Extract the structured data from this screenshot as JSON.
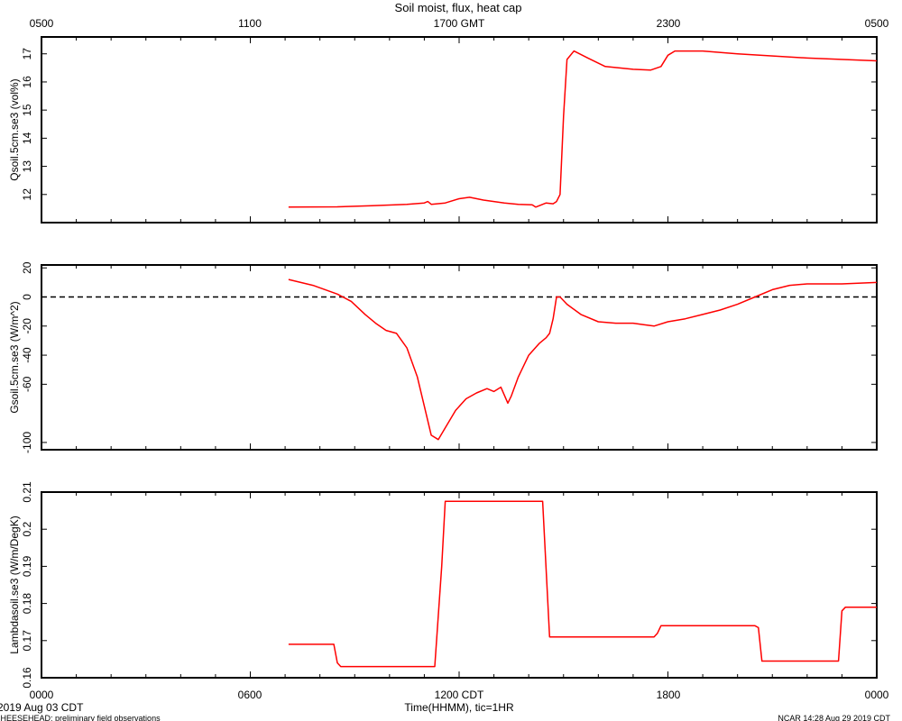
{
  "title": "Soil moist, flux, heat cap",
  "top_axis": {
    "ticks": [
      "0500",
      "1100",
      "1700 GMT",
      "2300",
      "0500"
    ]
  },
  "bottom_axis": {
    "ticks": [
      "0000",
      "0600",
      "1200 CDT",
      "1800",
      "0000"
    ],
    "label": "Time(HHMM), tic=1HR",
    "date": "2019 Aug 03 CDT"
  },
  "footer": {
    "left": "CHEESEHEAD: preliminary field observations",
    "right": "NCAR 14:28 Aug 29 2019 CDT"
  },
  "colors": {
    "series": "#ff0000",
    "axes": "#000000",
    "zero_line": "#000000"
  },
  "chart_data": [
    {
      "type": "line",
      "ylabel": "Qsoil.5cm.se3 (vol%)",
      "xlim": [
        0,
        24
      ],
      "ylim": [
        11,
        17.6
      ],
      "yticks": [
        12,
        13,
        14,
        15,
        16,
        17
      ],
      "series": [
        {
          "x": [
            7.1,
            8.5,
            9.5,
            10.5,
            11.0,
            11.1,
            11.2,
            11.6,
            12.0,
            12.3,
            12.7,
            13.3,
            13.7,
            14.1,
            14.2,
            14.5,
            14.7,
            14.8,
            14.9,
            15.0,
            15.1,
            15.3,
            15.7,
            16.2,
            17.0,
            17.5,
            17.8,
            18.0,
            18.2,
            19.0,
            20.0,
            22.0,
            24.0
          ],
          "y": [
            11.55,
            11.56,
            11.6,
            11.65,
            11.7,
            11.75,
            11.65,
            11.7,
            11.85,
            11.9,
            11.8,
            11.7,
            11.65,
            11.63,
            11.55,
            11.7,
            11.67,
            11.75,
            12.0,
            14.8,
            16.8,
            17.1,
            16.85,
            16.55,
            16.45,
            16.42,
            16.55,
            16.95,
            17.1,
            17.1,
            17.0,
            16.85,
            16.75
          ]
        }
      ]
    },
    {
      "type": "line",
      "ylabel": "Gsoil.5cm.se3 (W/m^2)",
      "xlim": [
        0,
        24
      ],
      "ylim": [
        -105,
        22
      ],
      "yticks": [
        20,
        0,
        -20,
        -40,
        -60,
        -100
      ],
      "reference_line": 0,
      "series": [
        {
          "x": [
            7.1,
            7.8,
            8.5,
            8.9,
            9.3,
            9.6,
            9.9,
            10.2,
            10.5,
            10.8,
            11.0,
            11.2,
            11.4,
            11.6,
            11.9,
            12.2,
            12.5,
            12.8,
            13.0,
            13.2,
            13.4,
            13.5,
            13.7,
            14.0,
            14.3,
            14.5,
            14.6,
            14.7,
            14.8,
            14.9,
            15.1,
            15.5,
            16.0,
            16.5,
            17.0,
            17.3,
            17.6,
            18.0,
            18.5,
            19.0,
            19.5,
            20.0,
            20.5,
            21.0,
            21.5,
            22.0,
            22.5,
            23.0,
            24.0
          ],
          "y": [
            12,
            8,
            2,
            -3,
            -12,
            -18,
            -23,
            -25,
            -35,
            -55,
            -75,
            -95,
            -98,
            -90,
            -78,
            -70,
            -66,
            -63,
            -65,
            -62,
            -73,
            -68,
            -55,
            -40,
            -32,
            -28,
            -25,
            -15,
            0,
            0,
            -5,
            -12,
            -17,
            -18,
            -18,
            -19,
            -20,
            -17,
            -15,
            -12,
            -9,
            -5,
            0,
            5,
            8,
            9,
            9,
            9,
            10
          ]
        }
      ]
    },
    {
      "type": "line",
      "ylabel": "Lambdasoil.se3 (W/m/DegK)",
      "xlim": [
        0,
        24
      ],
      "ylim": [
        0.16,
        0.21
      ],
      "yticks": [
        0.16,
        0.17,
        0.18,
        0.19,
        0.2,
        0.21
      ],
      "series": [
        {
          "x": [
            7.1,
            8.4,
            8.5,
            8.6,
            11.3,
            11.5,
            11.6,
            11.65,
            14.4,
            14.6,
            17.6,
            17.7,
            17.8,
            20.5,
            20.6,
            20.7,
            22.9,
            23.0,
            23.1,
            24.0
          ],
          "y": [
            0.169,
            0.169,
            0.164,
            0.163,
            0.163,
            0.19,
            0.2075,
            0.2075,
            0.2075,
            0.171,
            0.171,
            0.172,
            0.174,
            0.174,
            0.1735,
            0.1645,
            0.1645,
            0.178,
            0.179,
            0.179
          ]
        }
      ]
    }
  ]
}
